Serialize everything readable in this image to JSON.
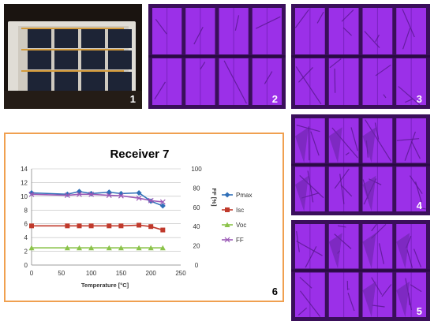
{
  "panels": [
    {
      "label": "1"
    },
    {
      "label": "2"
    },
    {
      "label": "3"
    },
    {
      "label": "4"
    },
    {
      "label": "5"
    },
    {
      "label": "6"
    }
  ],
  "colors": {
    "el_cell": "#9b30e8",
    "el_dark": "#3a0f5a",
    "frame_border": "#f0a050",
    "Pmax": "#2f6fb8",
    "Isc": "#c0392b",
    "Voc": "#8bc34a",
    "FF": "#9b59b6"
  },
  "chart_data": {
    "type": "line",
    "title": "Receiver 7",
    "xlabel": "Temperature [°C]",
    "ylabel_right": "FF [%]",
    "xlim": [
      0,
      250
    ],
    "xticks": [
      0,
      50,
      100,
      150,
      200,
      250
    ],
    "ylim_left": [
      0,
      14
    ],
    "yticks_left": [
      0,
      2,
      4,
      6,
      8,
      10,
      12,
      14
    ],
    "ylim_right": [
      0,
      100
    ],
    "yticks_right": [
      0,
      20,
      40,
      60,
      80,
      100
    ],
    "grid": "horizontal",
    "legend_position": "right",
    "x": [
      0,
      60,
      80,
      100,
      130,
      150,
      180,
      200,
      220
    ],
    "series": [
      {
        "name": "Pmax",
        "axis": "left",
        "marker": "diamond",
        "values": [
          10.5,
          10.3,
          10.7,
          10.4,
          10.6,
          10.4,
          10.5,
          9.3,
          8.6
        ]
      },
      {
        "name": "Isc",
        "axis": "left",
        "marker": "square",
        "values": [
          5.7,
          5.7,
          5.7,
          5.7,
          5.7,
          5.7,
          5.8,
          5.6,
          5.1
        ]
      },
      {
        "name": "Voc",
        "axis": "left",
        "marker": "triangle",
        "values": [
          2.5,
          2.5,
          2.5,
          2.5,
          2.5,
          2.5,
          2.5,
          2.5,
          2.5
        ]
      },
      {
        "name": "FF",
        "axis": "right",
        "marker": "x",
        "values": [
          73.5,
          72.5,
          73.5,
          73.5,
          72.5,
          72,
          69.5,
          67,
          65.5
        ]
      }
    ]
  }
}
